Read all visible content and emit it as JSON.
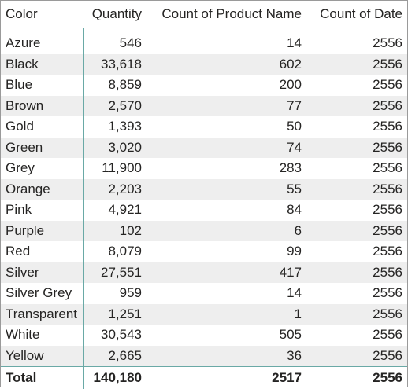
{
  "table": {
    "headers": [
      "Color",
      "Quantity",
      "Count of Product Name",
      "Count of Date"
    ],
    "rows": [
      [
        "Azure",
        "546",
        "14",
        "2556"
      ],
      [
        "Black",
        "33,618",
        "602",
        "2556"
      ],
      [
        "Blue",
        "8,859",
        "200",
        "2556"
      ],
      [
        "Brown",
        "2,570",
        "77",
        "2556"
      ],
      [
        "Gold",
        "1,393",
        "50",
        "2556"
      ],
      [
        "Green",
        "3,020",
        "74",
        "2556"
      ],
      [
        "Grey",
        "11,900",
        "283",
        "2556"
      ],
      [
        "Orange",
        "2,203",
        "55",
        "2556"
      ],
      [
        "Pink",
        "4,921",
        "84",
        "2556"
      ],
      [
        "Purple",
        "102",
        "6",
        "2556"
      ],
      [
        "Red",
        "8,079",
        "99",
        "2556"
      ],
      [
        "Silver",
        "27,551",
        "417",
        "2556"
      ],
      [
        "Silver Grey",
        "959",
        "14",
        "2556"
      ],
      [
        "Transparent",
        "1,251",
        "1",
        "2556"
      ],
      [
        "White",
        "30,543",
        "505",
        "2556"
      ],
      [
        "Yellow",
        "2,665",
        "36",
        "2556"
      ]
    ],
    "total": [
      "Total",
      "140,180",
      "2517",
      "2556"
    ]
  },
  "colors": {
    "grid_accent": "#6aa9a6",
    "row_band": "#eeeeee",
    "text": "#252423"
  }
}
